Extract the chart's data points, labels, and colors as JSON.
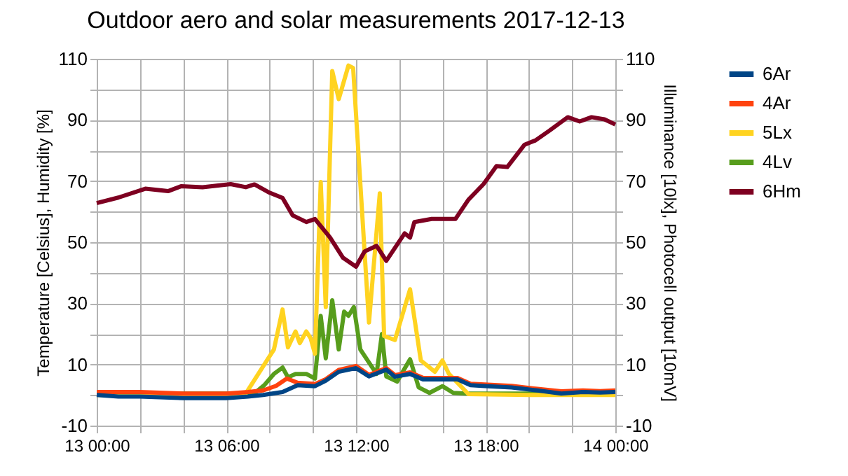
{
  "chart_data": {
    "type": "line",
    "title": "Outdoor aero and solar measurements 2017-12-13",
    "ylabel": "Temperature [Celsius], Humidity [%]",
    "y2label": "Illuminance [10lx], Photocell output [10mV]",
    "xlim": [
      "2017-12-13T00:00",
      "2017-12-14T00:00"
    ],
    "xticks": [
      {
        "value": "2017-12-13T00:00",
        "label": "13 00:00"
      },
      {
        "value": "2017-12-13T02:00",
        "label": null
      },
      {
        "value": "2017-12-13T04:00",
        "label": null
      },
      {
        "value": "2017-12-13T06:00",
        "label": "13 06:00"
      },
      {
        "value": "2017-12-13T08:00",
        "label": null
      },
      {
        "value": "2017-12-13T10:00",
        "label": null
      },
      {
        "value": "2017-12-13T12:00",
        "label": "13 12:00"
      },
      {
        "value": "2017-12-13T14:00",
        "label": null
      },
      {
        "value": "2017-12-13T16:00",
        "label": null
      },
      {
        "value": "2017-12-13T18:00",
        "label": "13 18:00"
      },
      {
        "value": "2017-12-13T20:00",
        "label": null
      },
      {
        "value": "2017-12-13T22:00",
        "label": null
      },
      {
        "value": "2017-12-14T00:00",
        "label": "14 00:00"
      }
    ],
    "ylim": [
      -10,
      110
    ],
    "yticks": [
      -10,
      {
        "value": 0,
        "label": null
      },
      10,
      {
        "value": 20,
        "label": null
      },
      30,
      {
        "value": 40,
        "label": null
      },
      50,
      {
        "value": 60,
        "label": null
      },
      70,
      {
        "value": 80,
        "label": null
      },
      90,
      {
        "value": 100,
        "label": null
      },
      110
    ],
    "y2lim": [
      -10,
      110
    ],
    "y2ticks": [
      -10,
      {
        "value": 0,
        "label": null
      },
      10,
      {
        "value": 20,
        "label": null
      },
      30,
      {
        "value": 40,
        "label": null
      },
      50,
      {
        "value": 60,
        "label": null
      },
      70,
      {
        "value": 80,
        "label": null
      },
      90,
      {
        "value": 100,
        "label": null
      },
      110
    ],
    "grid": true,
    "legend": "right",
    "series": [
      {
        "name": "6Ar",
        "color": "#004586",
        "x": [
          "2017-12-13T00:00",
          "2017-12-13T01:00",
          "2017-12-13T02:00",
          "2017-12-13T04:00",
          "2017-12-13T06:00",
          "2017-12-13T07:00",
          "2017-12-13T07:42",
          "2017-12-13T08:36",
          "2017-12-13T09:18",
          "2017-12-13T10:06",
          "2017-12-13T10:36",
          "2017-12-13T11:12",
          "2017-12-13T12:00",
          "2017-12-13T12:36",
          "2017-12-13T13:24",
          "2017-12-13T13:48",
          "2017-12-13T14:30",
          "2017-12-13T15:06",
          "2017-12-13T16:42",
          "2017-12-13T17:18",
          "2017-12-13T18:06",
          "2017-12-13T19:12",
          "2017-12-13T20:24",
          "2017-12-13T21:30",
          "2017-12-13T22:30",
          "2017-12-13T23:18",
          "2017-12-14T00:00"
        ],
        "values": [
          0,
          -0.5,
          -0.5,
          -1,
          -1,
          -0.5,
          0,
          1,
          3.2,
          2.9,
          4.7,
          7.6,
          8.8,
          6.1,
          8.3,
          6,
          6.9,
          5.1,
          5.1,
          3.2,
          2.9,
          2.5,
          1.5,
          0.5,
          1,
          0.8,
          1
        ]
      },
      {
        "name": "4Ar",
        "color": "#ff420e",
        "x": [
          "2017-12-13T00:00",
          "2017-12-13T02:00",
          "2017-12-13T04:00",
          "2017-12-13T06:00",
          "2017-12-13T07:00",
          "2017-12-13T07:42",
          "2017-12-13T08:18",
          "2017-12-13T08:48",
          "2017-12-13T09:18",
          "2017-12-13T10:06",
          "2017-12-13T10:36",
          "2017-12-13T11:12",
          "2017-12-13T12:00",
          "2017-12-13T12:36",
          "2017-12-13T13:24",
          "2017-12-13T13:48",
          "2017-12-13T14:30",
          "2017-12-13T15:06",
          "2017-12-13T16:42",
          "2017-12-13T17:18",
          "2017-12-13T18:06",
          "2017-12-13T19:12",
          "2017-12-13T20:24",
          "2017-12-13T21:30",
          "2017-12-13T22:30",
          "2017-12-13T23:18",
          "2017-12-14T00:00"
        ],
        "values": [
          1,
          1,
          0.5,
          0.5,
          1,
          1.5,
          3,
          5.4,
          4,
          3.6,
          5.2,
          8.2,
          9.5,
          6.6,
          8.8,
          6.5,
          7.4,
          5.6,
          5.6,
          3.7,
          3.4,
          3,
          2,
          1.2,
          1.5,
          1.3,
          1.5
        ]
      },
      {
        "name": "5Lx",
        "color": "#ffd320",
        "axis": "y2",
        "x": [
          "2017-12-13T00:00",
          "2017-12-13T06:00",
          "2017-12-13T06:54",
          "2017-12-13T08:12",
          "2017-12-13T08:36",
          "2017-12-13T08:51",
          "2017-12-13T09:12",
          "2017-12-13T09:24",
          "2017-12-13T09:42",
          "2017-12-13T09:54",
          "2017-12-13T10:06",
          "2017-12-13T10:22",
          "2017-12-13T10:36",
          "2017-12-13T10:54",
          "2017-12-13T11:12",
          "2017-12-13T11:39",
          "2017-12-13T11:52",
          "2017-12-13T12:36",
          "2017-12-13T13:06",
          "2017-12-13T13:18",
          "2017-12-13T13:48",
          "2017-12-13T14:30",
          "2017-12-13T15:00",
          "2017-12-13T15:39",
          "2017-12-13T16:00",
          "2017-12-13T16:18",
          "2017-12-13T17:12",
          "2017-12-13T20:00",
          "2017-12-14T00:00"
        ],
        "values": [
          0,
          0,
          0.5,
          14.9,
          28,
          15.6,
          20.8,
          17,
          20.8,
          18.6,
          13.5,
          69.7,
          28.8,
          106,
          96.8,
          107.8,
          107,
          23.7,
          66,
          19.3,
          18,
          34.6,
          11.3,
          7.6,
          11.3,
          6.9,
          0.3,
          0,
          0
        ]
      },
      {
        "name": "4Lv",
        "color": "#579d1c",
        "axis": "y2",
        "x": [
          "2017-12-13T00:00",
          "2017-12-13T06:00",
          "2017-12-13T07:18",
          "2017-12-13T07:45",
          "2017-12-13T08:12",
          "2017-12-13T08:36",
          "2017-12-13T08:51",
          "2017-12-13T09:12",
          "2017-12-13T09:42",
          "2017-12-13T10:06",
          "2017-12-13T10:22",
          "2017-12-13T10:36",
          "2017-12-13T10:54",
          "2017-12-13T11:12",
          "2017-12-13T11:27",
          "2017-12-13T11:39",
          "2017-12-13T11:54",
          "2017-12-13T12:12",
          "2017-12-13T12:57",
          "2017-12-13T13:12",
          "2017-12-13T13:24",
          "2017-12-13T13:54",
          "2017-12-13T14:30",
          "2017-12-13T14:54",
          "2017-12-13T15:24",
          "2017-12-13T16:00",
          "2017-12-13T16:30",
          "2017-12-13T17:06",
          "2017-12-13T20:00",
          "2017-12-14T00:00"
        ],
        "values": [
          0.5,
          0.5,
          0.6,
          3.2,
          6.9,
          9,
          5.8,
          6.9,
          6.9,
          5.4,
          25.9,
          12,
          31,
          14.9,
          27.3,
          25.9,
          28.8,
          14.9,
          6.9,
          20,
          6.1,
          4.4,
          11.7,
          2.5,
          0.7,
          2.9,
          0.7,
          0.5,
          0.5,
          0.5
        ]
      },
      {
        "name": "6Hm",
        "color": "#7e0021",
        "x": [
          "2017-12-13T00:00",
          "2017-12-13T01:00",
          "2017-12-13T02:15",
          "2017-12-13T03:18",
          "2017-12-13T03:54",
          "2017-12-13T04:54",
          "2017-12-13T06:12",
          "2017-12-13T06:54",
          "2017-12-13T07:18",
          "2017-12-13T08:00",
          "2017-12-13T08:36",
          "2017-12-13T09:04",
          "2017-12-13T09:42",
          "2017-12-13T10:06",
          "2017-12-13T10:48",
          "2017-12-13T11:24",
          "2017-12-13T12:00",
          "2017-12-13T12:24",
          "2017-12-13T12:57",
          "2017-12-13T13:24",
          "2017-12-13T14:15",
          "2017-12-13T14:30",
          "2017-12-13T14:42",
          "2017-12-13T15:30",
          "2017-12-13T16:36",
          "2017-12-13T17:12",
          "2017-12-13T17:54",
          "2017-12-13T18:30",
          "2017-12-13T19:00",
          "2017-12-13T19:48",
          "2017-12-13T20:18",
          "2017-12-13T20:57",
          "2017-12-13T21:48",
          "2017-12-13T22:21",
          "2017-12-13T22:54",
          "2017-12-13T23:30",
          "2017-12-14T00:00"
        ],
        "values": [
          62.8,
          64.6,
          67.5,
          66.7,
          68.3,
          68,
          69,
          68,
          68.9,
          66.2,
          64.5,
          58.8,
          56.6,
          57.6,
          51.5,
          44.9,
          42,
          47,
          48.8,
          43.9,
          52.9,
          51.5,
          56.6,
          57.6,
          57.6,
          63.9,
          69,
          74.9,
          74.6,
          81.9,
          83.3,
          86.5,
          90.9,
          89.5,
          90.9,
          90.2,
          88.5
        ]
      }
    ]
  }
}
